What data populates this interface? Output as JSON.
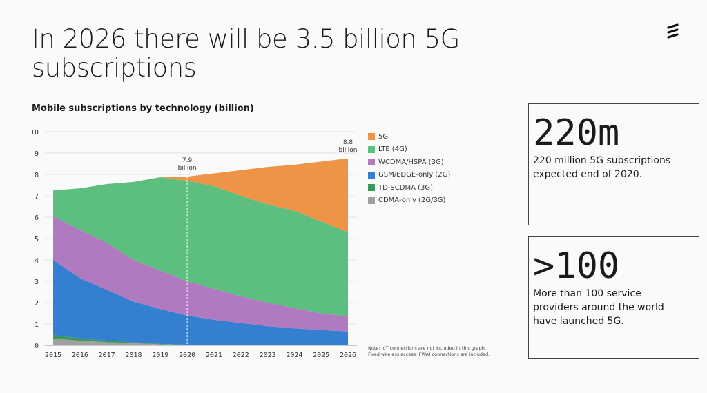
{
  "header": {
    "title": "In 2026 there will be 3.5 billion 5G subscriptions"
  },
  "chart_title": "Mobile subscriptions by technology (billion)",
  "chart_data": {
    "type": "area",
    "title": "Mobile subscriptions by technology (billion)",
    "xlabel": "",
    "ylabel": "",
    "x": [
      2015,
      2016,
      2017,
      2018,
      2019,
      2020,
      2021,
      2022,
      2023,
      2024,
      2025,
      2026
    ],
    "ylim": [
      0,
      10
    ],
    "yticks": [
      0,
      1,
      2,
      3,
      4,
      5,
      6,
      7,
      8,
      9,
      10
    ],
    "grid": true,
    "legend_placement": "right",
    "stacked": true,
    "series": [
      {
        "name": "CDMA-only (2G/3G)",
        "color": "#a0a0a0",
        "values": [
          0.32,
          0.22,
          0.15,
          0.1,
          0.05,
          0.02,
          0,
          0,
          0,
          0,
          0,
          0
        ]
      },
      {
        "name": "TD-SCDMA (3G)",
        "color": "#3a9a5c",
        "values": [
          0.16,
          0.11,
          0.07,
          0.04,
          0.02,
          0.01,
          0,
          0,
          0,
          0,
          0,
          0
        ]
      },
      {
        "name": "GSM/EDGE-only (2G)",
        "color": "#357fd1",
        "values": [
          3.52,
          2.82,
          2.38,
          1.91,
          1.63,
          1.37,
          1.2,
          1.05,
          0.9,
          0.8,
          0.72,
          0.65
        ]
      },
      {
        "name": "WCDMA/HSPA (3G)",
        "color": "#b07ac0",
        "values": [
          2.05,
          2.25,
          2.2,
          1.95,
          1.8,
          1.6,
          1.45,
          1.25,
          1.1,
          0.95,
          0.78,
          0.7
        ]
      },
      {
        "name": "LTE (4G)",
        "color": "#5cbf80",
        "values": [
          1.2,
          1.95,
          2.75,
          3.65,
          4.37,
          4.7,
          4.8,
          4.7,
          4.6,
          4.55,
          4.3,
          3.95
        ]
      },
      {
        "name": "5G",
        "color": "#ef9446",
        "values": [
          0,
          0,
          0,
          0,
          0,
          0.2,
          0.6,
          1.2,
          1.75,
          2.15,
          2.8,
          3.45
        ]
      }
    ],
    "annotations": [
      {
        "x": 2020,
        "value": "7.9",
        "unit": "billion"
      },
      {
        "x": 2026,
        "value": "8.8",
        "unit": "billion"
      }
    ],
    "legend": [
      "5G",
      "LTE (4G)",
      "WCDMA/HSPA (3G)",
      "GSM/EDGE-only (2G)",
      "TD-SCDMA (3G)",
      "CDMA-only (2G/3G)"
    ],
    "note": [
      "Note: IoT connections are not included in this graph.",
      "Fixed wireless access (FWA) connections are included."
    ]
  },
  "cards": [
    {
      "big": "220m",
      "text": "220 million 5G subscriptions expected end of 2020."
    },
    {
      "big": ">100",
      "text": "More than 100 service providers around the world have launched 5G."
    }
  ],
  "logo_icon": "ericsson-logo-icon"
}
